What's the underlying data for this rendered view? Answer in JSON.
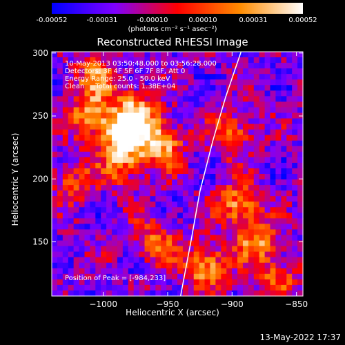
{
  "colorbar": {
    "tick_labels": [
      "-0.00052",
      "-0.00031",
      "-0.00010",
      "0.00010",
      "0.00031",
      "0.00052"
    ],
    "tick_values": [
      -0.00052,
      -0.00031,
      -0.0001,
      0.0001,
      0.00031,
      0.00052
    ],
    "range": [
      -0.00052,
      0.00052
    ],
    "unit_label": "(photons cm⁻² s⁻¹ asec⁻²)",
    "colormap_stops": [
      "#0000ff",
      "#7f00ff",
      "#ff0000",
      "#ff8c00",
      "#ffffff"
    ]
  },
  "chart_data": {
    "type": "heatmap",
    "title": "Reconstructed RHESSI Image",
    "xlabel": "Heliocentric X (arcsec)",
    "ylabel": "Heliocentric Y (arcsec)",
    "xlim": [
      -1040,
      -845
    ],
    "ylim": [
      107,
      301
    ],
    "xticks": [
      -1000,
      -950,
      -900,
      -850
    ],
    "yticks": [
      150,
      200,
      250,
      300
    ],
    "annotations": {
      "time_range": "10-May-2013 03:50:48.000 to 03:56:28.000",
      "detectors": "Detectors: 3F 4F 5F 6F 7F 8F, Att 0",
      "energy_range": "Energy Range: 25.0 - 50.0 keV",
      "clean_counts": "Clean     Total counts: 1.38E+04",
      "peak_position": "Position of Peak = [-984,233]"
    },
    "peak": [
      -984,
      233
    ],
    "bright_sources": [
      {
        "x": -984,
        "y": 233,
        "level": 1.0
      },
      {
        "x": -975,
        "y": 252,
        "level": 0.85
      },
      {
        "x": -1010,
        "y": 250,
        "level": 0.7
      },
      {
        "x": -955,
        "y": 228,
        "level": 0.8
      },
      {
        "x": -1005,
        "y": 280,
        "level": 0.6
      },
      {
        "x": -985,
        "y": 210,
        "level": 0.5
      },
      {
        "x": -920,
        "y": 130,
        "level": 0.75
      },
      {
        "x": -895,
        "y": 180,
        "level": 0.7
      },
      {
        "x": -880,
        "y": 150,
        "level": 0.65
      },
      {
        "x": -900,
        "y": 235,
        "level": 0.55
      },
      {
        "x": -960,
        "y": 150,
        "level": 0.5
      },
      {
        "x": -1025,
        "y": 200,
        "level": 0.45
      },
      {
        "x": -865,
        "y": 120,
        "level": 0.5
      }
    ],
    "limb_curve": [
      [
        -940,
        107
      ],
      [
        -932,
        150
      ],
      [
        -925,
        190
      ],
      [
        -915,
        230
      ],
      [
        -905,
        265
      ],
      [
        -893,
        301
      ]
    ]
  },
  "footer": {
    "timestamp": "13-May-2022 17:37"
  }
}
